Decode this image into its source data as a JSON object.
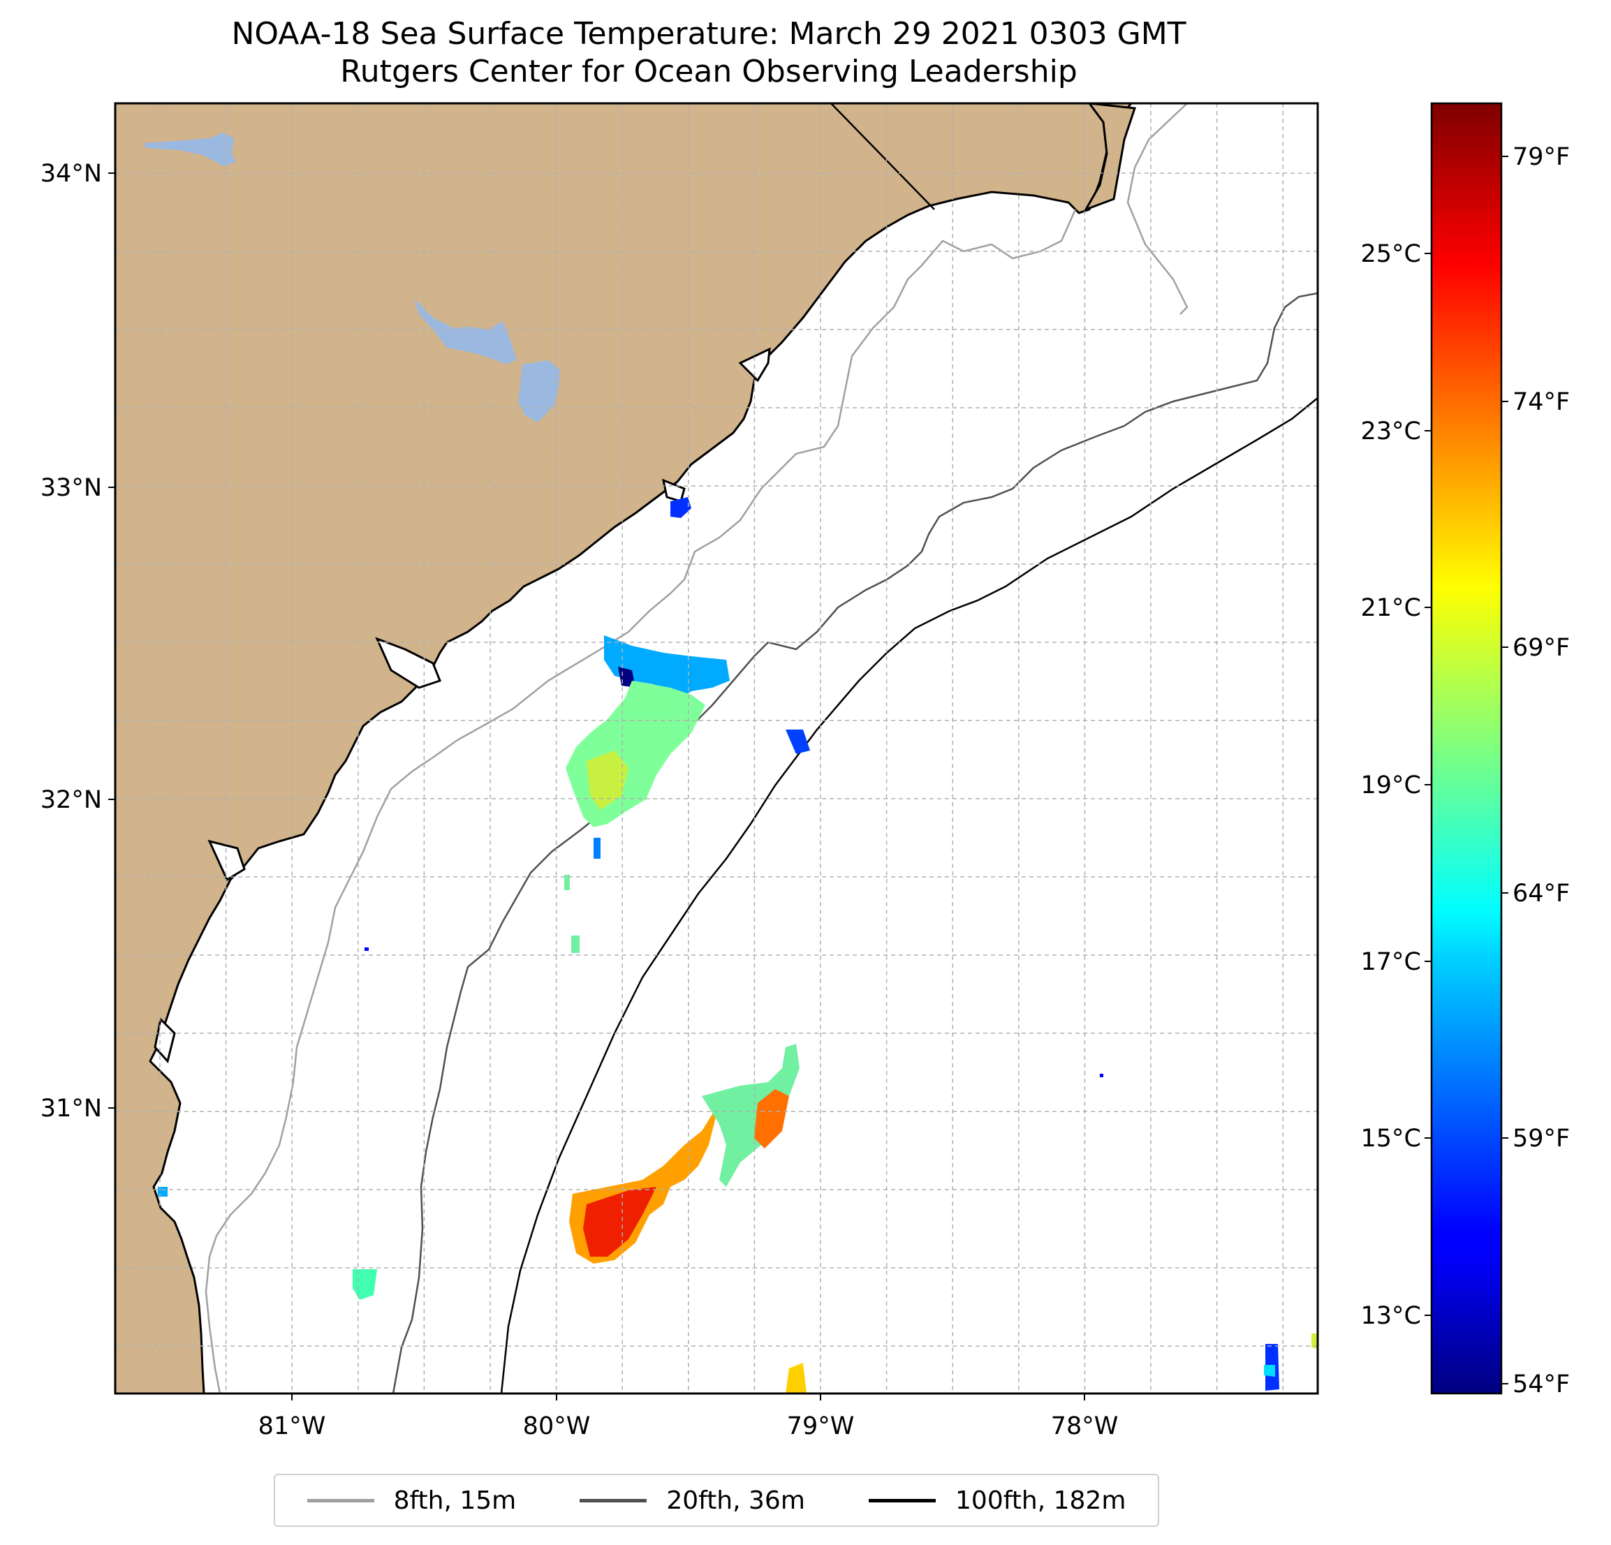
{
  "title": {
    "line1": "NOAA-18 Sea Surface Temperature: March 29 2021 0303 GMT",
    "line2": "Rutgers Center for Ocean Observing Leadership"
  },
  "map": {
    "lon_range": [
      -81.68,
      -77.12
    ],
    "lat_range": [
      30.08,
      34.22
    ],
    "lat_labels": [
      "34°N",
      "33°N",
      "32°N",
      "31°N"
    ],
    "lon_labels": [
      "81°W",
      "80°W",
      "79°W",
      "78°W"
    ],
    "land_color": "#d2b48c",
    "lake_color": "#9bb8e0",
    "grid": "dashed"
  },
  "colorbar": {
    "colormap": "jet",
    "celsius_labels": [
      "25°C",
      "23°C",
      "21°C",
      "19°C",
      "17°C",
      "15°C",
      "13°C"
    ],
    "fahrenheit_labels": [
      "79°F",
      "74°F",
      "69°F",
      "64°F",
      "59°F",
      "54°F"
    ]
  },
  "legend": {
    "items": [
      {
        "label": "8fth, 15m",
        "color": "#a0a0a0"
      },
      {
        "label": "20fth, 36m",
        "color": "#505050"
      },
      {
        "label": "100fth, 182m",
        "color": "#000000"
      }
    ]
  }
}
